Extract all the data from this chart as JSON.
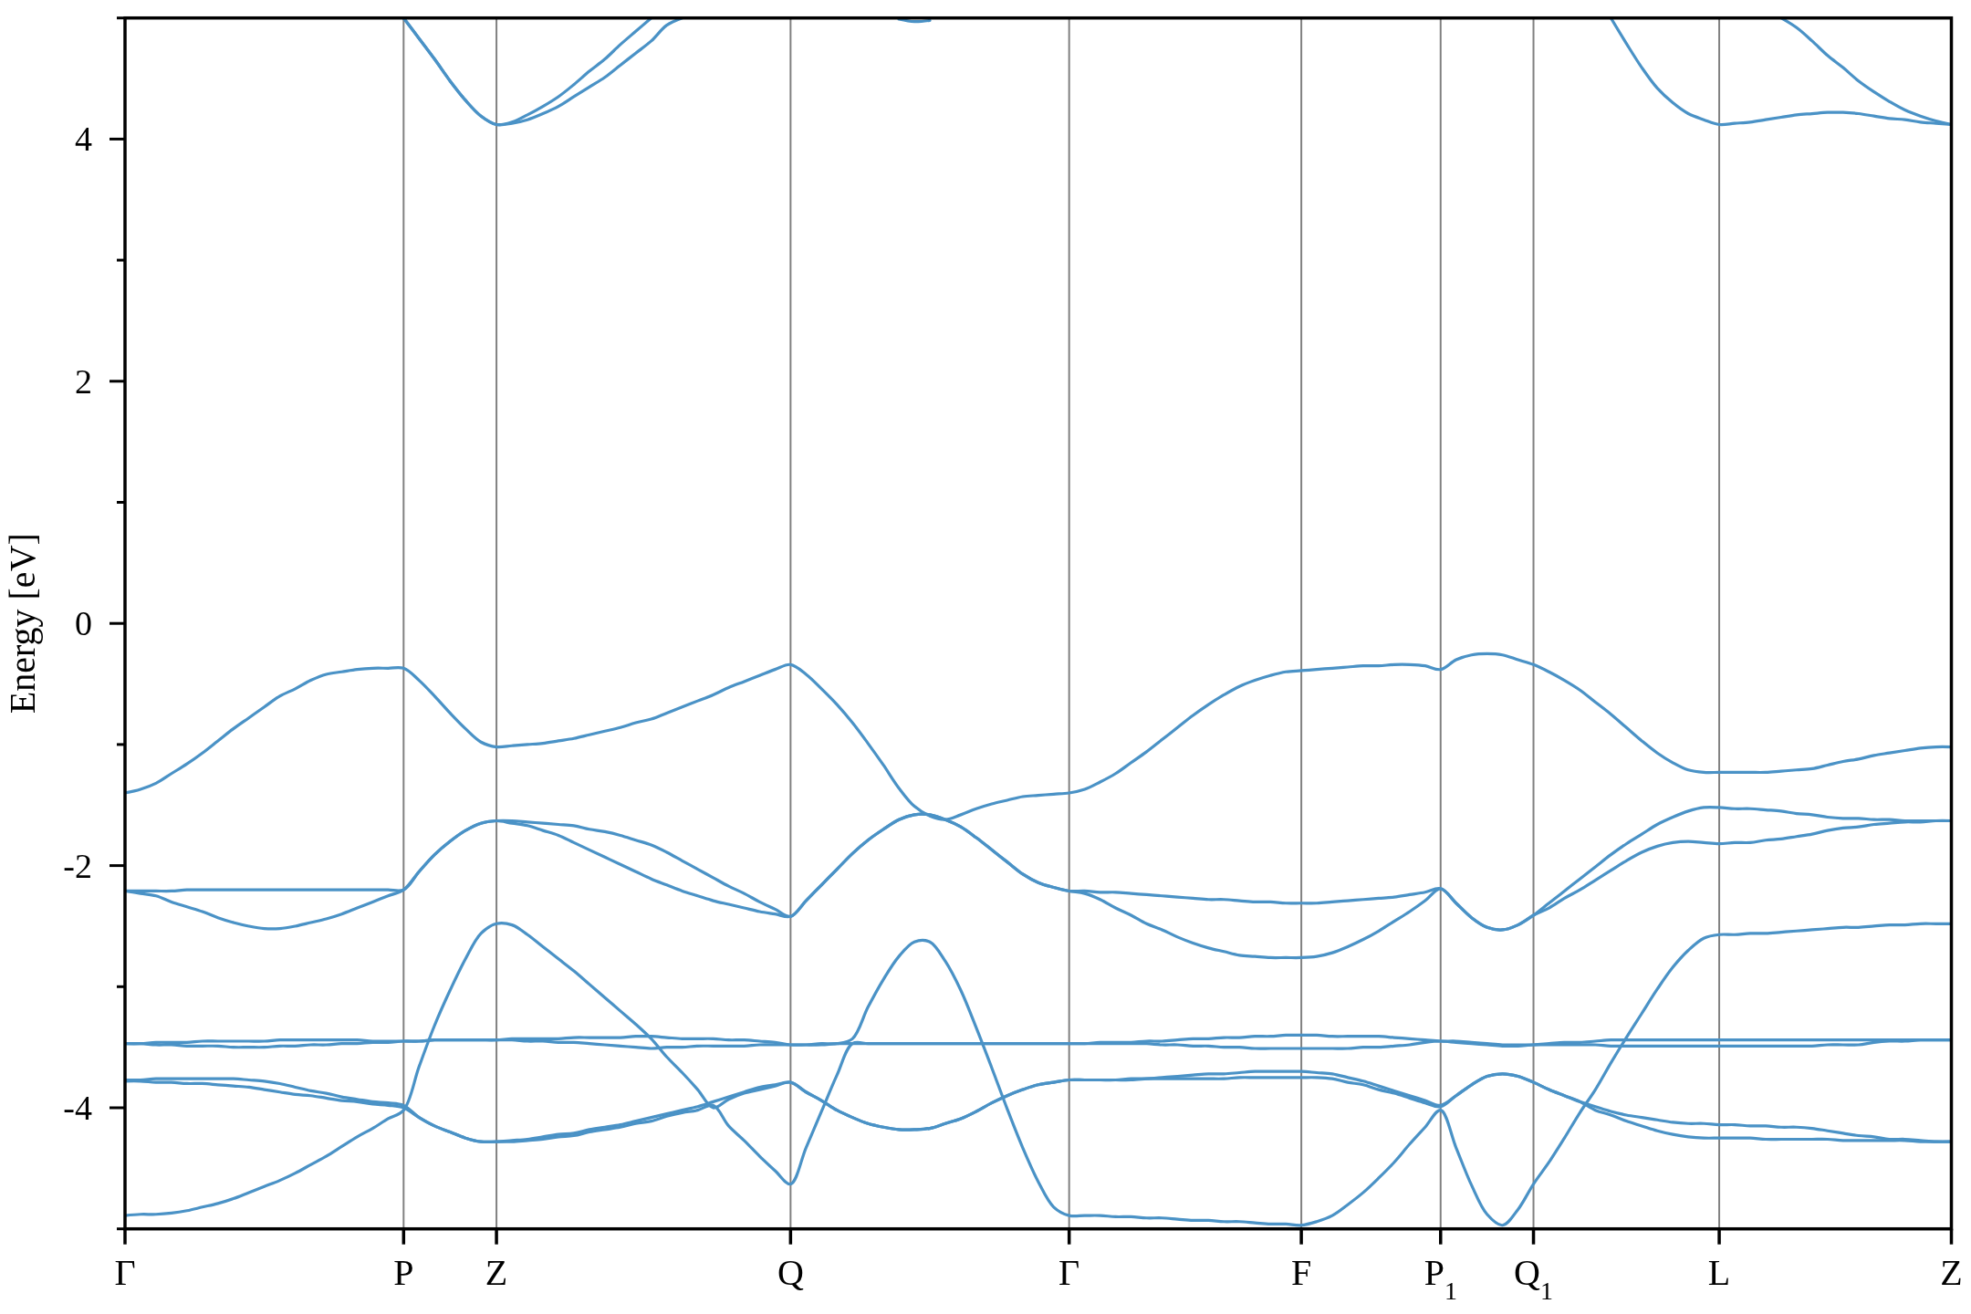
{
  "chart_data": {
    "type": "line",
    "ylabel": "Energy [eV]",
    "ylim": [
      -5,
      5
    ],
    "grid": "x",
    "categories": [
      "Γ",
      null,
      null,
      null,
      null,
      null,
      null,
      null,
      null,
      null,
      null,
      null,
      null,
      null,
      null,
      null,
      null,
      null,
      "P",
      null,
      null,
      null,
      null,
      null,
      "Z",
      null,
      null,
      null,
      null,
      null,
      null,
      null,
      null,
      null,
      null,
      null,
      null,
      null,
      null,
      null,
      null,
      null,
      null,
      "Q",
      null,
      null,
      null,
      null,
      null,
      null,
      null,
      null,
      null,
      null,
      null,
      null,
      null,
      null,
      null,
      null,
      null,
      "Γ",
      null,
      null,
      null,
      null,
      null,
      null,
      null,
      null,
      null,
      null,
      null,
      null,
      null,
      null,
      "F",
      null,
      null,
      null,
      null,
      null,
      null,
      null,
      null,
      "P$_{1}$",
      null,
      null,
      null,
      null,
      null,
      "Q$_{1}$",
      null,
      null,
      null,
      null,
      null,
      null,
      null,
      null,
      null,
      null,
      null,
      "L",
      null,
      null,
      null,
      null,
      null,
      null,
      null,
      null,
      null,
      null,
      null,
      null,
      null,
      null,
      "Z"
    ],
    "yticks": [
      {
        "value": -5,
        "label": null
      },
      -4,
      {
        "value": -3,
        "label": null
      },
      -2,
      {
        "value": -1,
        "label": null
      },
      0,
      {
        "value": 1,
        "label": null
      },
      2,
      {
        "value": 3,
        "label": null
      },
      4,
      {
        "value": 5,
        "label": null
      }
    ],
    "series": [
      {
        "color": "#4a92c6",
        "values": [
          -4.89,
          -4.88,
          -4.88,
          -4.87,
          -4.85,
          -4.82,
          -4.79,
          -4.75,
          -4.7,
          -4.65,
          -4.6,
          -4.54,
          -4.47,
          -4.4,
          -4.32,
          -4.24,
          -4.17,
          -4.09,
          -4.02,
          -3.66,
          -3.32,
          -3.03,
          -2.77,
          -2.56,
          -2.48,
          -2.49,
          -2.57,
          -2.67,
          -2.77,
          -2.87,
          -2.98,
          -3.09,
          -3.2,
          -3.31,
          -3.43,
          -3.58,
          -3.71,
          -3.85,
          -4.0,
          -3.93,
          -3.88,
          -3.85,
          -3.82,
          -3.79,
          -3.87,
          -3.94,
          -4.02,
          -4.08,
          -4.13,
          -4.16,
          -4.18,
          -4.18,
          -4.17,
          -4.13,
          -4.09,
          -4.03,
          -3.96,
          -3.9,
          -3.85,
          -3.81,
          -3.79,
          -3.77,
          -3.77,
          -3.77,
          -3.77,
          -3.77,
          -3.76,
          -3.75,
          -3.74,
          -3.73,
          -3.72,
          -3.72,
          -3.71,
          -3.7,
          -3.7,
          -3.7,
          -3.7,
          -3.71,
          -3.72,
          -3.75,
          -3.78,
          -3.82,
          -3.86,
          -3.9,
          -3.94,
          -3.98,
          -3.9,
          -3.81,
          -3.74,
          -3.72,
          -3.74,
          -3.79,
          -3.85,
          -3.9,
          -3.95,
          -4.02,
          -4.06,
          -4.11,
          -4.15,
          -4.19,
          -4.22,
          -4.24,
          -4.25,
          -4.25,
          -4.25,
          -4.25,
          -4.26,
          -4.26,
          -4.26,
          -4.26,
          -4.26,
          -4.27,
          -4.27,
          -4.27,
          -4.27,
          -4.27,
          -4.28,
          -4.28,
          -4.28
        ]
      },
      {
        "color": "#4a92c6",
        "values": [
          -3.78,
          -3.78,
          -3.79,
          -3.79,
          -3.8,
          -3.8,
          -3.81,
          -3.82,
          -3.83,
          -3.85,
          -3.87,
          -3.89,
          -3.9,
          -3.92,
          -3.94,
          -3.95,
          -3.97,
          -3.98,
          -4.0,
          -4.08,
          -4.15,
          -4.2,
          -4.25,
          -4.28,
          -4.28,
          -4.27,
          -4.26,
          -4.24,
          -4.22,
          -4.21,
          -4.18,
          -4.16,
          -4.14,
          -4.11,
          -4.08,
          -4.05,
          -4.02,
          -3.99,
          -3.95,
          -3.91,
          -3.87,
          -3.83,
          -3.81,
          -3.79,
          -3.87,
          -3.94,
          -4.02,
          -4.08,
          -4.13,
          -4.16,
          -4.18,
          -4.18,
          -4.17,
          -4.13,
          -4.09,
          -4.03,
          -3.96,
          -3.9,
          -3.85,
          -3.81,
          -3.79,
          -3.77,
          -3.77,
          -3.77,
          -3.77,
          -3.76,
          -3.76,
          -3.76,
          -3.76,
          -3.76,
          -3.76,
          -3.76,
          -3.75,
          -3.75,
          -3.75,
          -3.75,
          -3.75,
          -3.75,
          -3.76,
          -3.79,
          -3.81,
          -3.85,
          -3.88,
          -3.92,
          -3.96,
          -3.99,
          -3.9,
          -3.81,
          -3.74,
          -3.72,
          -3.74,
          -3.79,
          -3.85,
          -3.9,
          -3.95,
          -3.99,
          -4.03,
          -4.06,
          -4.08,
          -4.1,
          -4.12,
          -4.13,
          -4.13,
          -4.14,
          -4.14,
          -4.15,
          -4.15,
          -4.16,
          -4.16,
          -4.17,
          -4.19,
          -4.21,
          -4.23,
          -4.24,
          -4.26,
          -4.26,
          -4.27,
          -4.28,
          -4.28
        ]
      },
      {
        "color": "#4a92c6",
        "values": [
          -3.77,
          -3.77,
          -3.76,
          -3.76,
          -3.76,
          -3.76,
          -3.76,
          -3.76,
          -3.77,
          -3.78,
          -3.8,
          -3.83,
          -3.86,
          -3.88,
          -3.91,
          -3.93,
          -3.95,
          -3.96,
          -3.98,
          -4.08,
          -4.15,
          -4.2,
          -4.25,
          -4.28,
          -4.28,
          -4.28,
          -4.27,
          -4.26,
          -4.24,
          -4.23,
          -4.2,
          -4.18,
          -4.16,
          -4.13,
          -4.11,
          -4.07,
          -4.04,
          -4.02,
          -3.98,
          -4.15,
          -4.27,
          -4.4,
          -4.52,
          -4.63,
          -4.33,
          -4.03,
          -3.73,
          -3.47,
          -3.47,
          -3.47,
          -3.47,
          -3.47,
          -3.47,
          -3.47,
          -3.47,
          -3.47,
          -3.47,
          -3.47,
          -3.47,
          -3.47,
          -3.47,
          -3.47,
          -3.47,
          -3.46,
          -3.46,
          -3.46,
          -3.45,
          -3.45,
          -3.44,
          -3.43,
          -3.43,
          -3.42,
          -3.42,
          -3.41,
          -3.41,
          -3.4,
          -3.4,
          -3.4,
          -3.41,
          -3.41,
          -3.41,
          -3.41,
          -3.42,
          -3.43,
          -3.44,
          -3.45,
          -3.45,
          -3.46,
          -3.47,
          -3.48,
          -3.48,
          -3.48,
          -3.47,
          -3.46,
          -3.46,
          -3.45,
          -3.44,
          -3.44,
          -3.44,
          -3.44,
          -3.44,
          -3.44,
          -3.44,
          -3.44,
          -3.44,
          -3.44,
          -3.44,
          -3.44,
          -3.44,
          -3.44,
          -3.44,
          -3.44,
          -3.44,
          -3.44,
          -3.44,
          -3.44,
          -3.44,
          -3.44,
          -3.44
        ]
      },
      {
        "color": "#4a92c6",
        "values": [
          -3.47,
          -3.47,
          -3.48,
          -3.48,
          -3.49,
          -3.49,
          -3.49,
          -3.5,
          -3.5,
          -3.5,
          -3.49,
          -3.49,
          -3.48,
          -3.48,
          -3.47,
          -3.47,
          -3.46,
          -3.46,
          -3.45,
          -3.45,
          -3.44,
          -3.44,
          -3.44,
          -3.44,
          -3.44,
          -3.44,
          -3.45,
          -3.45,
          -3.46,
          -3.46,
          -3.47,
          -3.48,
          -3.49,
          -3.5,
          -3.51,
          -3.5,
          -3.5,
          -3.49,
          -3.49,
          -3.49,
          -3.49,
          -3.48,
          -3.48,
          -3.48,
          -3.48,
          -3.48,
          -3.47,
          -3.47,
          -3.47,
          -3.47,
          -3.47,
          -3.47,
          -3.47,
          -3.47,
          -3.47,
          -3.47,
          -3.47,
          -3.47,
          -3.47,
          -3.47,
          -3.47,
          -3.47,
          -3.47,
          -3.47,
          -3.47,
          -3.47,
          -3.47,
          -3.48,
          -3.48,
          -3.49,
          -3.49,
          -3.5,
          -3.5,
          -3.51,
          -3.51,
          -3.51,
          -3.51,
          -3.51,
          -3.51,
          -3.51,
          -3.5,
          -3.5,
          -3.49,
          -3.48,
          -3.46,
          -3.45,
          -3.46,
          -3.47,
          -3.48,
          -3.49,
          -3.49,
          -3.48,
          -3.48,
          -3.48,
          -3.48,
          -3.48,
          -3.49,
          -3.49,
          -3.49,
          -3.49,
          -3.49,
          -3.49,
          -3.49,
          -3.49,
          -3.49,
          -3.49,
          -3.49,
          -3.49,
          -3.49,
          -3.49,
          -3.48,
          -3.48,
          -3.48,
          -3.46,
          -3.45,
          -3.45,
          -3.44,
          -3.44,
          -3.44
        ]
      },
      {
        "color": "#4a92c6",
        "values": [
          -3.47,
          -3.47,
          -3.46,
          -3.46,
          -3.46,
          -3.45,
          -3.45,
          -3.45,
          -3.45,
          -3.45,
          -3.44,
          -3.44,
          -3.44,
          -3.44,
          -3.44,
          -3.44,
          -3.45,
          -3.45,
          -3.45,
          -3.45,
          -3.44,
          -3.44,
          -3.44,
          -3.44,
          -3.44,
          -3.43,
          -3.43,
          -3.43,
          -3.43,
          -3.42,
          -3.42,
          -3.42,
          -3.42,
          -3.41,
          -3.41,
          -3.42,
          -3.43,
          -3.43,
          -3.43,
          -3.44,
          -3.44,
          -3.45,
          -3.46,
          -3.48,
          -3.48,
          -3.47,
          -3.47,
          -3.43,
          -3.17,
          -2.94,
          -2.75,
          -2.63,
          -2.63,
          -2.79,
          -3.03,
          -3.34,
          -3.67,
          -4.01,
          -4.33,
          -4.61,
          -4.82,
          -4.89,
          -4.89,
          -4.89,
          -4.9,
          -4.9,
          -4.91,
          -4.91,
          -4.92,
          -4.93,
          -4.93,
          -4.94,
          -4.94,
          -4.95,
          -4.96,
          -4.96,
          -4.97,
          -4.94,
          -4.89,
          -4.8,
          -4.7,
          -4.58,
          -4.45,
          -4.3,
          -4.16,
          -4.02,
          -4.33,
          -4.64,
          -4.88,
          -4.97,
          -4.84,
          -4.63,
          -4.45,
          -4.25,
          -4.04,
          -3.85,
          -3.63,
          -3.42,
          -3.22,
          -3.02,
          -2.84,
          -2.7,
          -2.6,
          -2.57,
          -2.57,
          -2.56,
          -2.56,
          -2.55,
          -2.54,
          -2.53,
          -2.52,
          -2.51,
          -2.51,
          -2.5,
          -2.49,
          -2.49,
          -2.48,
          -2.48,
          -2.48
        ]
      },
      {
        "color": "#4a92c6",
        "values": [
          -2.21,
          -2.23,
          -2.25,
          -2.3,
          -2.34,
          -2.38,
          -2.43,
          -2.47,
          -2.5,
          -2.52,
          -2.52,
          -2.5,
          -2.47,
          -2.44,
          -2.4,
          -2.35,
          -2.3,
          -2.25,
          -2.2,
          -2.05,
          -1.91,
          -1.8,
          -1.71,
          -1.65,
          -1.63,
          -1.65,
          -1.67,
          -1.71,
          -1.75,
          -1.81,
          -1.87,
          -1.93,
          -1.99,
          -2.05,
          -2.11,
          -2.16,
          -2.21,
          -2.25,
          -2.29,
          -2.32,
          -2.35,
          -2.38,
          -2.4,
          -2.42,
          -2.29,
          -2.16,
          -2.03,
          -1.9,
          -1.79,
          -1.7,
          -1.62,
          -1.58,
          -1.58,
          -1.62,
          -1.68,
          -1.77,
          -1.87,
          -1.97,
          -2.07,
          -2.14,
          -2.18,
          -2.21,
          -2.23,
          -2.28,
          -2.35,
          -2.41,
          -2.48,
          -2.53,
          -2.59,
          -2.64,
          -2.68,
          -2.71,
          -2.74,
          -2.75,
          -2.76,
          -2.76,
          -2.76,
          -2.75,
          -2.72,
          -2.67,
          -2.61,
          -2.54,
          -2.46,
          -2.38,
          -2.29,
          -2.19,
          -2.31,
          -2.43,
          -2.51,
          -2.53,
          -2.49,
          -2.41,
          -2.35,
          -2.27,
          -2.2,
          -2.12,
          -2.04,
          -1.96,
          -1.89,
          -1.84,
          -1.81,
          -1.8,
          -1.81,
          -1.82,
          -1.81,
          -1.81,
          -1.79,
          -1.78,
          -1.76,
          -1.74,
          -1.71,
          -1.69,
          -1.68,
          -1.66,
          -1.65,
          -1.64,
          -1.64,
          -1.63,
          -1.63
        ]
      },
      {
        "color": "#4a92c6",
        "values": [
          -2.21,
          -2.21,
          -2.21,
          -2.21,
          -2.2,
          -2.2,
          -2.2,
          -2.2,
          -2.2,
          -2.2,
          -2.2,
          -2.2,
          -2.2,
          -2.2,
          -2.2,
          -2.2,
          -2.2,
          -2.2,
          -2.2,
          -2.05,
          -1.91,
          -1.8,
          -1.71,
          -1.65,
          -1.63,
          -1.63,
          -1.64,
          -1.65,
          -1.66,
          -1.67,
          -1.7,
          -1.72,
          -1.75,
          -1.79,
          -1.83,
          -1.89,
          -1.96,
          -2.03,
          -2.1,
          -2.17,
          -2.23,
          -2.3,
          -2.36,
          -2.42,
          -2.29,
          -2.16,
          -2.03,
          -1.9,
          -1.79,
          -1.7,
          -1.62,
          -1.58,
          -1.58,
          -1.62,
          -1.68,
          -1.77,
          -1.87,
          -1.97,
          -2.07,
          -2.14,
          -2.18,
          -2.21,
          -2.21,
          -2.22,
          -2.22,
          -2.23,
          -2.24,
          -2.25,
          -2.26,
          -2.27,
          -2.28,
          -2.28,
          -2.29,
          -2.3,
          -2.3,
          -2.31,
          -2.31,
          -2.31,
          -2.3,
          -2.29,
          -2.28,
          -2.27,
          -2.26,
          -2.24,
          -2.22,
          -2.19,
          -2.31,
          -2.43,
          -2.51,
          -2.53,
          -2.49,
          -2.41,
          -2.31,
          -2.21,
          -2.11,
          -2.01,
          -1.91,
          -1.82,
          -1.74,
          -1.66,
          -1.6,
          -1.55,
          -1.52,
          -1.52,
          -1.53,
          -1.53,
          -1.54,
          -1.55,
          -1.57,
          -1.58,
          -1.6,
          -1.61,
          -1.61,
          -1.62,
          -1.62,
          -1.63,
          -1.63,
          -1.63,
          -1.63
        ]
      },
      {
        "color": "#4a92c6",
        "values": [
          -1.4,
          -1.37,
          -1.32,
          -1.24,
          -1.16,
          -1.07,
          -0.97,
          -0.87,
          -0.78,
          -0.69,
          -0.6,
          -0.54,
          -0.47,
          -0.42,
          -0.4,
          -0.38,
          -0.37,
          -0.37,
          -0.37,
          -0.47,
          -0.6,
          -0.74,
          -0.87,
          -0.98,
          -1.02,
          -1.01,
          -1.0,
          -0.99,
          -0.97,
          -0.95,
          -0.92,
          -0.89,
          -0.86,
          -0.82,
          -0.79,
          -0.74,
          -0.69,
          -0.64,
          -0.59,
          -0.53,
          -0.48,
          -0.43,
          -0.38,
          -0.34,
          -0.42,
          -0.54,
          -0.67,
          -0.82,
          -0.99,
          -1.17,
          -1.36,
          -1.51,
          -1.59,
          -1.62,
          -1.58,
          -1.53,
          -1.49,
          -1.46,
          -1.43,
          -1.42,
          -1.41,
          -1.4,
          -1.37,
          -1.31,
          -1.24,
          -1.15,
          -1.06,
          -0.96,
          -0.86,
          -0.76,
          -0.67,
          -0.59,
          -0.52,
          -0.47,
          -0.43,
          -0.4,
          -0.39,
          -0.38,
          -0.37,
          -0.36,
          -0.35,
          -0.35,
          -0.34,
          -0.34,
          -0.35,
          -0.38,
          -0.3,
          -0.26,
          -0.25,
          -0.26,
          -0.3,
          -0.34,
          -0.4,
          -0.47,
          -0.55,
          -0.65,
          -0.75,
          -0.86,
          -0.97,
          -1.07,
          -1.15,
          -1.21,
          -1.23,
          -1.23,
          -1.23,
          -1.23,
          -1.23,
          -1.22,
          -1.21,
          -1.2,
          -1.17,
          -1.14,
          -1.12,
          -1.09,
          -1.07,
          -1.05,
          -1.03,
          -1.02,
          -1.02
        ]
      },
      {
        "color": "#4a92c6",
        "values": [
          null,
          null,
          null,
          null,
          null,
          null,
          null,
          null,
          null,
          null,
          null,
          null,
          null,
          null,
          null,
          null,
          null,
          null,
          5,
          4.83,
          4.66,
          4.48,
          4.32,
          4.19,
          4.12,
          4.14,
          4.2,
          4.27,
          4.35,
          4.45,
          4.56,
          4.66,
          4.78,
          4.89,
          5,
          null,
          null,
          null,
          null,
          null,
          null,
          null,
          null,
          null,
          null,
          null,
          null,
          null,
          null,
          null,
          null,
          null,
          null,
          null,
          null,
          null,
          null,
          null,
          null,
          null,
          null,
          null,
          null,
          null,
          null,
          null,
          null,
          null,
          null,
          null,
          null,
          null,
          null,
          null,
          null,
          null,
          null,
          null,
          null,
          null,
          null,
          null,
          null,
          null,
          null,
          null,
          null,
          null,
          null,
          null,
          null,
          null,
          null,
          null,
          null,
          null,
          null,
          null,
          null,
          null,
          null,
          null,
          null,
          null,
          null,
          null,
          null,
          null,
          null,
          null,
          null,
          null,
          null,
          null,
          null,
          null,
          null,
          null,
          null
        ]
      },
      {
        "color": "#4a92c6",
        "values": [
          null,
          null,
          null,
          null,
          null,
          null,
          null,
          null,
          null,
          null,
          null,
          null,
          null,
          null,
          null,
          null,
          null,
          null,
          5,
          4.83,
          4.66,
          4.48,
          4.32,
          4.19,
          4.12,
          4.13,
          4.16,
          4.21,
          4.27,
          4.35,
          4.43,
          4.51,
          4.61,
          4.71,
          4.81,
          4.94,
          5,
          null,
          null,
          null,
          null,
          null,
          null,
          null,
          null,
          null,
          null,
          null,
          null,
          null,
          null,
          null,
          null,
          null,
          null,
          null,
          null,
          null,
          null,
          null,
          null,
          null,
          null,
          null,
          null,
          null,
          null,
          null,
          null,
          null,
          null,
          null,
          null,
          null,
          null,
          null,
          null,
          null,
          null,
          null,
          null,
          null,
          null,
          null,
          null,
          null,
          null,
          null,
          null,
          null,
          null,
          null,
          null,
          null,
          null,
          null,
          null,
          null,
          null,
          null,
          null,
          null,
          null,
          null,
          null,
          null,
          null,
          null,
          null,
          null,
          null,
          null,
          null,
          null,
          null,
          null,
          null,
          null,
          null
        ]
      },
      {
        "color": "#4a92c6",
        "values": [
          null,
          null,
          null,
          null,
          null,
          null,
          null,
          null,
          null,
          null,
          null,
          null,
          null,
          null,
          null,
          null,
          null,
          null,
          null,
          null,
          null,
          null,
          null,
          null,
          null,
          null,
          null,
          null,
          null,
          null,
          null,
          null,
          null,
          null,
          null,
          null,
          null,
          null,
          null,
          null,
          null,
          null,
          null,
          null,
          null,
          null,
          null,
          null,
          null,
          null,
          4.99,
          4.97,
          4.98,
          null,
          null,
          null,
          null,
          null,
          null,
          null,
          null,
          null,
          null,
          null,
          null,
          null,
          null,
          null,
          null,
          null,
          null,
          null,
          null,
          null,
          null,
          null,
          null,
          null,
          null,
          null,
          null,
          null,
          null,
          null,
          null,
          null,
          null,
          null,
          null,
          null,
          null,
          null,
          null,
          null,
          null,
          null,
          null,
          null,
          null,
          null,
          null,
          null,
          null,
          null,
          null,
          null,
          null,
          null,
          null,
          null,
          null,
          null,
          null,
          null,
          null,
          null,
          null,
          null,
          null
        ]
      },
      {
        "color": "#4a92c6",
        "values": [
          null,
          null,
          null,
          null,
          null,
          null,
          null,
          null,
          null,
          null,
          null,
          null,
          null,
          null,
          null,
          null,
          null,
          null,
          null,
          null,
          null,
          null,
          null,
          null,
          null,
          null,
          null,
          null,
          null,
          null,
          null,
          null,
          null,
          null,
          null,
          null,
          null,
          null,
          null,
          null,
          null,
          null,
          null,
          null,
          null,
          null,
          null,
          null,
          null,
          null,
          null,
          null,
          null,
          null,
          null,
          null,
          null,
          null,
          null,
          null,
          null,
          null,
          null,
          null,
          null,
          null,
          null,
          null,
          null,
          null,
          null,
          null,
          null,
          null,
          null,
          null,
          null,
          null,
          null,
          null,
          null,
          null,
          null,
          null,
          null,
          null,
          null,
          null,
          null,
          null,
          null,
          null,
          null,
          null,
          null,
          null,
          5,
          4.79,
          4.59,
          4.42,
          4.3,
          4.21,
          4.16,
          4.12,
          4.13,
          4.14,
          4.16,
          4.18,
          4.2,
          4.21,
          4.22,
          4.22,
          4.21,
          4.19,
          4.17,
          4.16,
          4.14,
          4.13,
          4.12
        ]
      },
      {
        "color": "#4a92c6",
        "values": [
          null,
          null,
          null,
          null,
          null,
          null,
          null,
          null,
          null,
          null,
          null,
          null,
          null,
          null,
          null,
          null,
          null,
          null,
          null,
          null,
          null,
          null,
          null,
          null,
          null,
          null,
          null,
          null,
          null,
          null,
          null,
          null,
          null,
          null,
          null,
          null,
          null,
          null,
          null,
          null,
          null,
          null,
          null,
          null,
          null,
          null,
          null,
          null,
          null,
          null,
          null,
          null,
          null,
          null,
          null,
          null,
          null,
          null,
          null,
          null,
          null,
          null,
          null,
          null,
          null,
          null,
          null,
          null,
          null,
          null,
          null,
          null,
          null,
          null,
          null,
          null,
          null,
          null,
          null,
          null,
          null,
          null,
          null,
          null,
          null,
          null,
          null,
          null,
          null,
          null,
          null,
          null,
          null,
          null,
          null,
          null,
          null,
          null,
          null,
          null,
          null,
          null,
          null,
          null,
          null,
          null,
          null,
          5,
          4.92,
          4.81,
          4.69,
          4.59,
          4.48,
          4.39,
          4.31,
          4.24,
          4.19,
          4.15,
          4.12
        ]
      }
    ]
  }
}
